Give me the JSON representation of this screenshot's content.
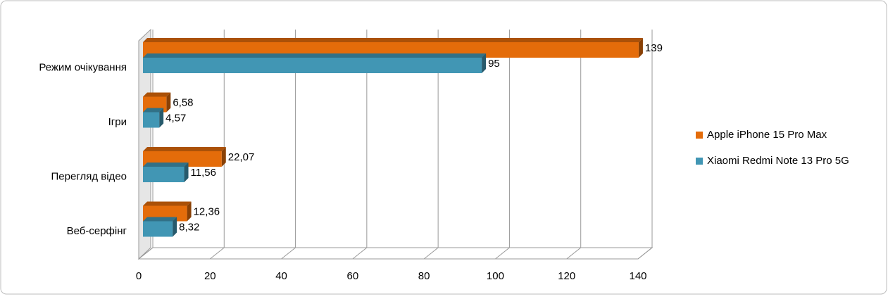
{
  "chart_data": {
    "type": "bar3d_horizontal",
    "categories": [
      "Режим очікування",
      "Ігри",
      "Перегляд відео",
      "Веб-серфінг"
    ],
    "series": [
      {
        "name": "Apple iPhone 15 Pro Max",
        "color": "#e46c0a",
        "values": [
          139,
          6.58,
          22.07,
          12.36
        ],
        "value_labels": [
          "139",
          "6,58",
          "22,07",
          "12,36"
        ]
      },
      {
        "name": "Xiaomi Redmi Note 13 Pro 5G",
        "color": "#4196b4",
        "values": [
          95,
          4.57,
          11.56,
          8.32
        ],
        "value_labels": [
          "95",
          "4,57",
          "11,56",
          "8,32"
        ]
      }
    ],
    "xlim": [
      0,
      140
    ],
    "xticks": [
      0,
      20,
      40,
      60,
      80,
      100,
      120,
      140
    ],
    "grid": true,
    "legend": "right"
  }
}
